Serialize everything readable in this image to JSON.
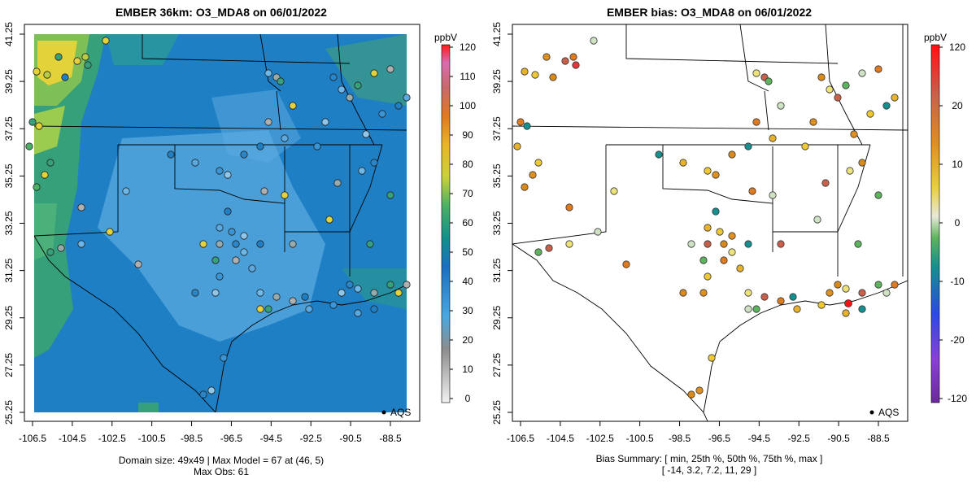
{
  "panels": [
    {
      "title": "EMBER 36km: O3_MDA8 on 06/01/2022",
      "footer": {
        "line1": "Domain size: 49x49 | Max Model = 67 at (46, 5)",
        "line2": "Max Obs: 61"
      },
      "legend": {
        "unit": "ppbV",
        "ticks": [
          "120",
          "110",
          "100",
          "90",
          "80",
          "70",
          "60",
          "50",
          "40",
          "30",
          "20",
          "10",
          "0"
        ]
      },
      "aqs_label": "AQS"
    },
    {
      "title": "EMBER bias: O3_MDA8 on 06/01/2022",
      "footer": {
        "line1": "Bias Summary: [ min, 25th %, 50th %, 75th %, max ]",
        "line2": "[ -14,   3.2,   7.2,   11,   29 ]"
      },
      "legend": {
        "unit": "ppbV",
        "ticks": [
          "120",
          "20",
          "10",
          "0",
          "-10",
          "-20",
          "-120"
        ]
      },
      "aqs_label": "AQS"
    }
  ],
  "axis": {
    "x_ticks": [
      "-106.5",
      "-104.5",
      "-102.5",
      "-100.5",
      "-98.5",
      "-96.5",
      "-94.5",
      "-92.5",
      "-90.5",
      "-88.5"
    ],
    "y_ticks": [
      "41.25",
      "39.25",
      "37.25",
      "35.25",
      "33.25",
      "31.25",
      "29.25",
      "27.25",
      "25.25"
    ]
  },
  "colors": {
    "model_base": "#1f7fc4",
    "model_light": "#5aa9e0",
    "model_green": "#35a07a",
    "model_yellow": "#e4d23a"
  }
}
